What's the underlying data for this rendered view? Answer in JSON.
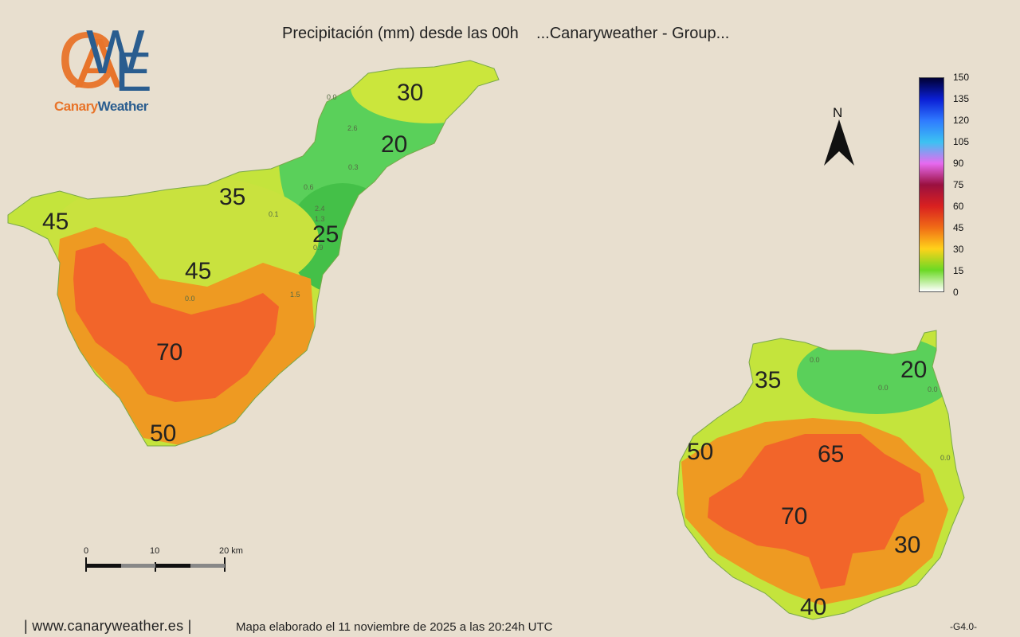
{
  "header": {
    "title": "Precipitación (mm) desde las 00h    ...Canaryweather - Group..."
  },
  "logo": {
    "mark": "CAWE",
    "text_part1": "Canary",
    "text_part2": "Weather",
    "color_orange": "#e8742a",
    "color_blue": "#2a5d8f"
  },
  "compass": {
    "label": "N",
    "icon": "north-arrow-icon"
  },
  "legend": {
    "unit": "mm",
    "ticks": [
      "150",
      "135",
      "120",
      "105",
      "90",
      "75",
      "60",
      "45",
      "30",
      "15",
      "0"
    ],
    "colors": [
      "#000033",
      "#0b1fd6",
      "#2f7bff",
      "#3cc2f2",
      "#e76af0",
      "#9a1040",
      "#d92020",
      "#f06b16",
      "#ffd21a",
      "#6bd924",
      "#ffffff"
    ]
  },
  "scale_bar": {
    "labels": [
      "0",
      "10",
      "20 km"
    ]
  },
  "islands": {
    "tenerife": {
      "labels": [
        "30",
        "20",
        "35",
        "45",
        "25",
        "45",
        "70",
        "50"
      ]
    },
    "gran_canaria": {
      "labels": [
        "35",
        "20",
        "50",
        "65",
        "70",
        "30",
        "40"
      ]
    }
  },
  "station_values": [
    "0.0",
    "0.1",
    "2.6",
    "0.3",
    "0.6",
    "1.3",
    "2.4",
    "0.9",
    "1.5"
  ],
  "footer": {
    "site": "| www.canaryweather.es |",
    "note": "Mapa elaborado el 11 noviembre de 2025 a las 20:24h UTC",
    "version": "-G4.0-"
  }
}
